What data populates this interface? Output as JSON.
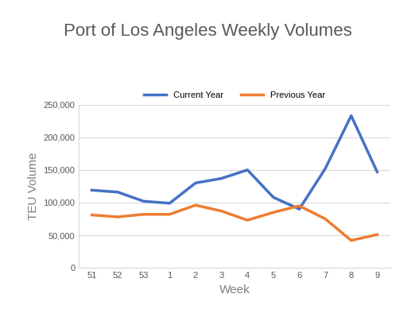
{
  "chart_data": {
    "type": "line",
    "title": "Port of Los Angeles Weekly Volumes",
    "x_label": "Week",
    "y_label": "TEU Volume",
    "categories": [
      "51",
      "52",
      "53",
      "1",
      "2",
      "3",
      "4",
      "5",
      "6",
      "7",
      "8",
      "9"
    ],
    "series": [
      {
        "name": "Current Year",
        "color": "#4472c4",
        "values": [
          119000,
          116000,
          102000,
          99000,
          130000,
          137000,
          150000,
          108000,
          90000,
          152000,
          233000,
          147000
        ]
      },
      {
        "name": "Previous Year",
        "color": "#ed7d31",
        "values": [
          81000,
          78000,
          82000,
          82000,
          96000,
          87000,
          73000,
          85000,
          95000,
          75000,
          42000,
          51000
        ]
      }
    ],
    "ylim": [
      0,
      250000
    ],
    "yticks": [
      0,
      {
        "value": 50000,
        "label": "50,000"
      },
      {
        "value": 100000,
        "label": "100,000"
      },
      {
        "value": 150000,
        "label": "150,000"
      },
      {
        "value": 200000,
        "label": "200,000"
      },
      {
        "value": 250000,
        "label": "250,000"
      }
    ],
    "grid": true,
    "legend": "upper center"
  }
}
